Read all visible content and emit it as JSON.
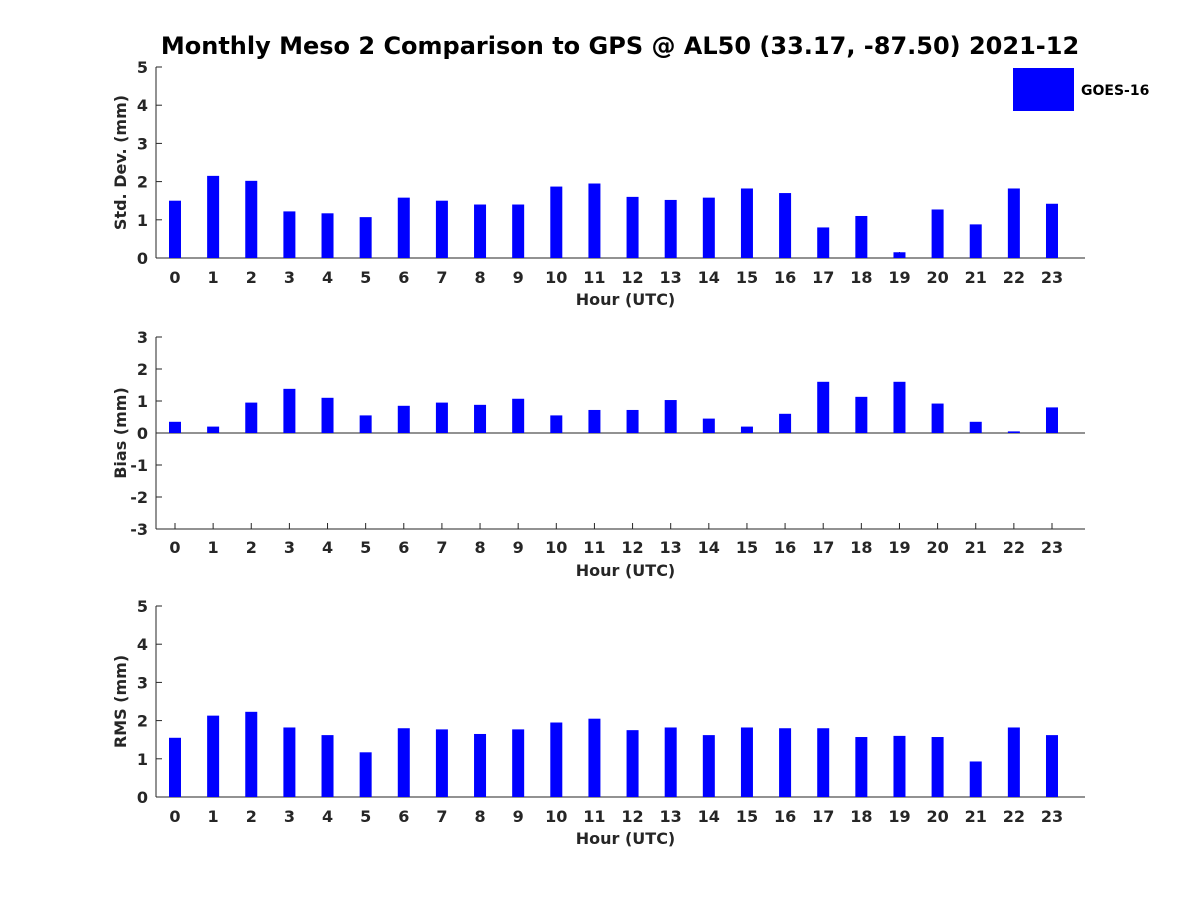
{
  "title": "Monthly Meso 2 Comparison to GPS @ AL50 (33.17, -87.50) 2021-12",
  "legend": {
    "label": "GOES-16",
    "color": "#0000ff",
    "placement": "top-right"
  },
  "chart_data": [
    {
      "type": "bar",
      "name": "std-dev",
      "xlabel": "Hour (UTC)",
      "ylabel": "Std. Dev. (mm)",
      "ylim": [
        0,
        5
      ],
      "yticks": [
        0,
        1,
        2,
        3,
        4,
        5
      ],
      "categories": [
        "0",
        "1",
        "2",
        "3",
        "4",
        "5",
        "6",
        "7",
        "8",
        "9",
        "10",
        "11",
        "12",
        "13",
        "14",
        "15",
        "16",
        "17",
        "18",
        "19",
        "20",
        "21",
        "22",
        "23"
      ],
      "series": [
        {
          "values": [
            1.5,
            2.15,
            2.02,
            1.22,
            1.17,
            1.07,
            1.58,
            1.5,
            1.4,
            1.4,
            1.87,
            1.95,
            1.6,
            1.52,
            1.58,
            1.82,
            1.7,
            0.8,
            1.1,
            0.15,
            1.27,
            0.88,
            1.82,
            1.42
          ]
        }
      ]
    },
    {
      "type": "bar",
      "name": "bias",
      "xlabel": "Hour (UTC)",
      "ylabel": "Bias (mm)",
      "ylim": [
        -3,
        3
      ],
      "yticks": [
        -3,
        -2,
        -1,
        0,
        1,
        2,
        3
      ],
      "categories": [
        "0",
        "1",
        "2",
        "3",
        "4",
        "5",
        "6",
        "7",
        "8",
        "9",
        "10",
        "11",
        "12",
        "13",
        "14",
        "15",
        "16",
        "17",
        "18",
        "19",
        "20",
        "21",
        "22",
        "23"
      ],
      "series": [
        {
          "values": [
            0.35,
            0.2,
            0.95,
            1.38,
            1.1,
            0.55,
            0.85,
            0.95,
            0.88,
            1.07,
            0.55,
            0.72,
            0.72,
            1.03,
            0.45,
            0.2,
            0.6,
            1.6,
            1.13,
            1.6,
            0.92,
            0.35,
            0.05,
            0.8
          ]
        }
      ]
    },
    {
      "type": "bar",
      "name": "rms",
      "xlabel": "Hour (UTC)",
      "ylabel": "RMS (mm)",
      "ylim": [
        0,
        5
      ],
      "yticks": [
        0,
        1,
        2,
        3,
        4,
        5
      ],
      "categories": [
        "0",
        "1",
        "2",
        "3",
        "4",
        "5",
        "6",
        "7",
        "8",
        "9",
        "10",
        "11",
        "12",
        "13",
        "14",
        "15",
        "16",
        "17",
        "18",
        "19",
        "20",
        "21",
        "22",
        "23"
      ],
      "series": [
        {
          "values": [
            1.55,
            2.13,
            2.23,
            1.82,
            1.62,
            1.17,
            1.8,
            1.77,
            1.65,
            1.77,
            1.95,
            2.05,
            1.75,
            1.82,
            1.62,
            1.82,
            1.8,
            1.8,
            1.57,
            1.6,
            1.57,
            0.93,
            1.82,
            1.62
          ]
        }
      ]
    }
  ]
}
